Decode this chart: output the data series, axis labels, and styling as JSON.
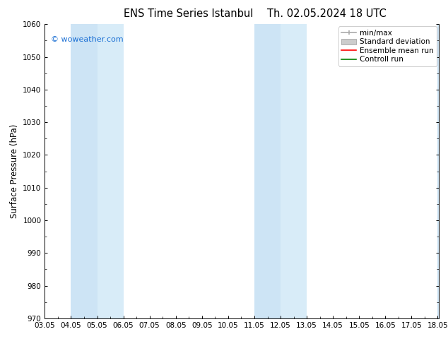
{
  "title_left": "ENS Time Series Istanbul",
  "title_right": "Th. 02.05.2024 18 UTC",
  "ylabel": "Surface Pressure (hPa)",
  "xlim": [
    3.05,
    18.1
  ],
  "ylim": [
    970,
    1060
  ],
  "yticks": [
    970,
    980,
    990,
    1000,
    1010,
    1020,
    1030,
    1040,
    1050,
    1060
  ],
  "xtick_labels": [
    "03.05",
    "04.05",
    "05.05",
    "06.05",
    "07.05",
    "08.05",
    "09.05",
    "10.05",
    "11.05",
    "12.05",
    "13.05",
    "14.05",
    "15.05",
    "16.05",
    "17.05",
    "18.05"
  ],
  "xtick_positions": [
    3.05,
    4.05,
    5.05,
    6.05,
    7.05,
    8.05,
    9.05,
    10.05,
    11.05,
    12.05,
    13.05,
    14.05,
    15.05,
    16.05,
    17.05,
    18.05
  ],
  "shaded_bands": [
    [
      4.05,
      5.05,
      "#cde4f5"
    ],
    [
      5.05,
      6.05,
      "#d8ecf8"
    ],
    [
      11.05,
      12.05,
      "#cde4f5"
    ],
    [
      12.05,
      13.05,
      "#d8ecf8"
    ],
    [
      18.05,
      18.12,
      "#cde4f5"
    ]
  ],
  "watermark": "© woweather.com",
  "watermark_color": "#1a6fd4",
  "legend_labels": [
    "min/max",
    "Standard deviation",
    "Ensemble mean run",
    "Controll run"
  ],
  "legend_colors": [
    "#aaaaaa",
    "#cccccc",
    "red",
    "green"
  ],
  "bg_color": "#ffffff",
  "plot_bg_color": "#ffffff",
  "title_fontsize": 10.5,
  "tick_fontsize": 7.5,
  "ylabel_fontsize": 8.5,
  "legend_fontsize": 7.5
}
